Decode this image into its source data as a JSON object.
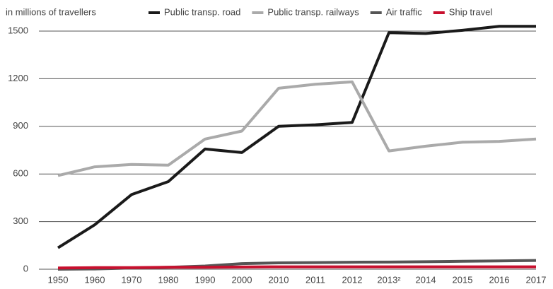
{
  "chart_data": {
    "type": "line",
    "y_label": "in millions of travellers",
    "categories": [
      "1950",
      "1960",
      "1970",
      "1980",
      "1990",
      "2000",
      "2010",
      "2011",
      "2012",
      "2013²",
      "2014",
      "2015",
      "2016",
      "2017"
    ],
    "series": [
      {
        "name": "Public transp. road",
        "color": "#1a1a1a",
        "values": [
          135,
          280,
          470,
          552,
          757,
          735,
          900,
          910,
          925,
          1490,
          1485,
          1505,
          1530,
          1530
        ]
      },
      {
        "name": "Public transp. railways",
        "color": "#aaaaaa",
        "values": [
          590,
          645,
          660,
          655,
          820,
          870,
          1140,
          1165,
          1180,
          745,
          775,
          800,
          805,
          820
        ]
      },
      {
        "name": "Air traffic",
        "color": "#555555",
        "values": [
          0,
          2,
          8,
          12,
          20,
          35,
          40,
          42,
          44,
          45,
          47,
          50,
          52,
          55
        ]
      },
      {
        "name": "Ship travel",
        "color": "#c8102e",
        "values": [
          8,
          10,
          10,
          12,
          12,
          14,
          15,
          15,
          15,
          15,
          15,
          15,
          15,
          15
        ]
      }
    ],
    "ylim": [
      0,
      1500
    ],
    "yticks": [
      0,
      300,
      600,
      900,
      1200,
      1500
    ],
    "grid": true
  }
}
